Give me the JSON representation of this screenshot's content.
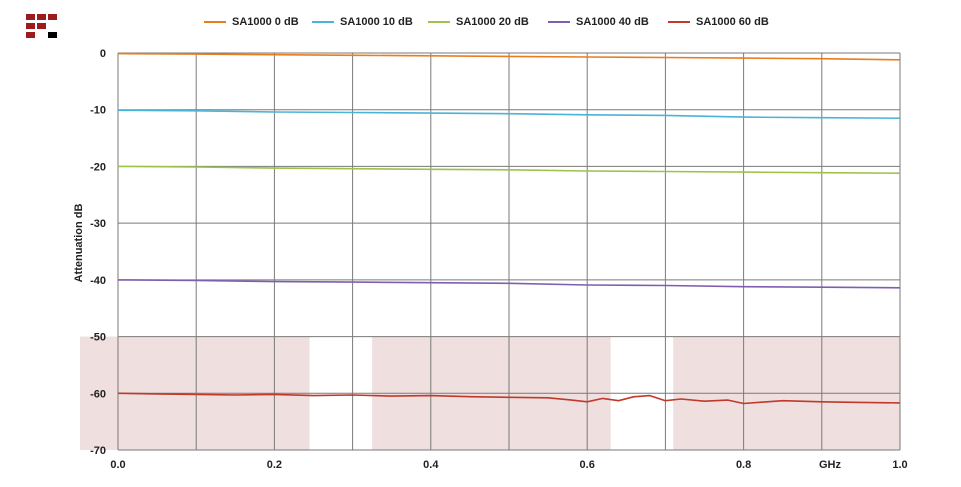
{
  "logo": {
    "name": "brand-logo",
    "colors": [
      "#9b1c1c",
      "#9b1c1c",
      "#9b1c1c",
      "#000000"
    ]
  },
  "chart_data": {
    "type": "line",
    "title": "",
    "xlabel": "GHz",
    "ylabel": "Attenuation dB",
    "xlim": [
      0.0,
      1.0
    ],
    "ylim": [
      -70,
      0
    ],
    "x_ticks": [
      "0.0",
      "0.2",
      "0.4",
      "0.6",
      "0.8",
      "1.0"
    ],
    "x_tick_values": [
      0.0,
      0.2,
      0.4,
      0.6,
      0.8,
      1.0
    ],
    "y_ticks": [
      "0",
      "-10",
      "-20",
      "-30",
      "-40",
      "-50",
      "-60",
      "-70"
    ],
    "y_tick_values": [
      0,
      -10,
      -20,
      -30,
      -40,
      -50,
      -60,
      -70
    ],
    "grid": {
      "x_step": 0.1,
      "y_step": 10,
      "visible": true
    },
    "legend_position": "top",
    "shaded_bands": [
      {
        "x0": -0.05,
        "x1": 0.245,
        "y0": -70,
        "y1": -50
      },
      {
        "x0": 0.325,
        "x1": 0.63,
        "y0": -70,
        "y1": -50
      },
      {
        "x0": 0.71,
        "x1": 1.0,
        "y0": -70,
        "y1": -50
      }
    ],
    "band_color": "#efdfdf",
    "series": [
      {
        "name": "SA1000 0 dB",
        "color": "#e87d1e",
        "x": [
          0.0,
          0.1,
          0.2,
          0.3,
          0.4,
          0.5,
          0.6,
          0.7,
          0.8,
          0.9,
          1.0
        ],
        "y": [
          -0.1,
          -0.2,
          -0.3,
          -0.4,
          -0.5,
          -0.6,
          -0.7,
          -0.8,
          -0.9,
          -1.0,
          -1.2
        ]
      },
      {
        "name": "SA1000 10 dB",
        "color": "#4bb3d8",
        "x": [
          0.0,
          0.1,
          0.2,
          0.3,
          0.4,
          0.5,
          0.6,
          0.7,
          0.8,
          0.9,
          1.0
        ],
        "y": [
          -10.1,
          -10.2,
          -10.4,
          -10.5,
          -10.6,
          -10.7,
          -10.9,
          -11.0,
          -11.3,
          -11.4,
          -11.5
        ]
      },
      {
        "name": "SA1000 20 dB",
        "color": "#9cc34b",
        "x": [
          0.0,
          0.1,
          0.2,
          0.3,
          0.4,
          0.5,
          0.6,
          0.7,
          0.8,
          0.9,
          1.0
        ],
        "y": [
          -20.0,
          -20.1,
          -20.3,
          -20.4,
          -20.5,
          -20.6,
          -20.8,
          -20.9,
          -21.0,
          -21.1,
          -21.2
        ]
      },
      {
        "name": "SA1000 40 dB",
        "color": "#7f5eb0",
        "x": [
          0.0,
          0.1,
          0.2,
          0.3,
          0.4,
          0.5,
          0.6,
          0.7,
          0.8,
          0.9,
          1.0
        ],
        "y": [
          -40.0,
          -40.1,
          -40.3,
          -40.4,
          -40.5,
          -40.6,
          -40.9,
          -41.0,
          -41.2,
          -41.3,
          -41.4
        ]
      },
      {
        "name": "SA1000 60 dB",
        "color": "#c0392b",
        "x": [
          0.0,
          0.05,
          0.1,
          0.15,
          0.2,
          0.25,
          0.3,
          0.35,
          0.4,
          0.45,
          0.5,
          0.55,
          0.58,
          0.6,
          0.62,
          0.64,
          0.66,
          0.68,
          0.7,
          0.72,
          0.75,
          0.78,
          0.8,
          0.85,
          0.9,
          0.95,
          1.0
        ],
        "y": [
          -60.0,
          -60.1,
          -60.2,
          -60.3,
          -60.2,
          -60.4,
          -60.3,
          -60.5,
          -60.4,
          -60.6,
          -60.7,
          -60.8,
          -61.2,
          -61.5,
          -60.9,
          -61.3,
          -60.6,
          -60.4,
          -61.3,
          -61.0,
          -61.4,
          -61.2,
          -61.8,
          -61.3,
          -61.5,
          -61.6,
          -61.7
        ]
      }
    ]
  }
}
